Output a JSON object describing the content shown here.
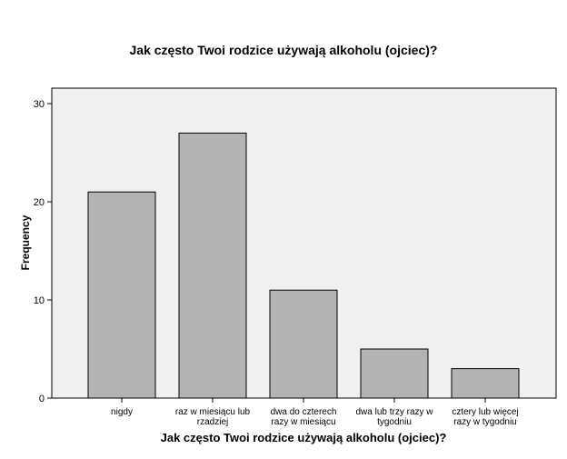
{
  "chart_data": {
    "type": "bar",
    "title": "Jak często Twoi rodzice używają alkoholu (ojciec)?",
    "xlabel": "Jak często Twoi rodzice używają alkoholu (ojciec)?",
    "ylabel": "Frequency",
    "categories": [
      "nigdy",
      "raz w miesiącu lub rzadziej",
      "dwa do czterech razy w miesiącu",
      "dwa lub trzy razy w tygodniu",
      "cztery lub więcej razy w tygodniu"
    ],
    "category_lines": [
      [
        "nigdy"
      ],
      [
        "raz w miesiącu lub",
        "rzadziej"
      ],
      [
        "dwa do czterech",
        "razy w miesiącu"
      ],
      [
        "dwa lub trzy razy w",
        "tygodniu"
      ],
      [
        "cztery lub więcej",
        "razy w tygodniu"
      ]
    ],
    "values": [
      21,
      27,
      11,
      5,
      3
    ],
    "ylim": [
      0,
      30
    ],
    "yticks": [
      0,
      10,
      20,
      30
    ],
    "grid": false,
    "colors": {
      "bar_fill": "#b3b3b3",
      "bar_stroke": "#000000",
      "plot_background": "#f0f0f0",
      "page_background": "#ffffff"
    }
  }
}
